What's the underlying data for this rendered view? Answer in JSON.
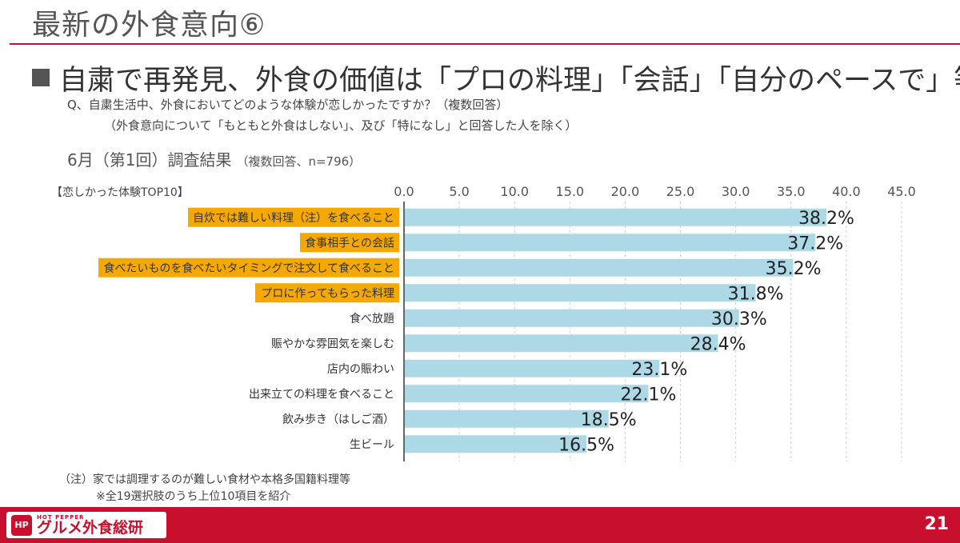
{
  "page": {
    "title": "最新の外食意向⑥",
    "headline": "自粛で再発見、外食の価値は「プロの料理」「会話」「自分のペースで」等",
    "question_line1": "Q、自粛生活中、外食においてどのような体験が恋しかったですか？（複数回答）",
    "question_line2": "（外食意向について「もともと外食はしない」、及び「特になし」と回答した人を除く）",
    "survey_title": "6月（第1回）調査結果",
    "survey_note": "（複数回答、n=796）",
    "chart_caption": "【恋しかった体験TOP10】",
    "note1": "（注）家では調理するのが難しい食材や本格多国籍料理等",
    "note2": "※全19選択肢のうち上位10項目を紹介",
    "page_number": "21"
  },
  "logo": {
    "mark": "HP",
    "small": "HOT PEPPER",
    "text": "グルメ外食総研"
  },
  "colors": {
    "bar": "#add8e6",
    "highlight": "#f5a800",
    "brand_red": "#c8102e",
    "axis_text": "#555555"
  },
  "chart_data": {
    "type": "bar",
    "orientation": "horizontal",
    "categories": [
      "自炊では難しい料理（注）を食べること",
      "食事相手との会話",
      "食べたいものを食べたいタイミングで注文して食べること",
      "プロに作ってもらった料理",
      "食べ放題",
      "賑やかな雰囲気を楽しむ",
      "店内の賑わい",
      "出来立ての料理を食べること",
      "飲み歩き（はしご酒）",
      "生ビール"
    ],
    "values": [
      38.2,
      37.2,
      35.2,
      31.8,
      30.3,
      28.4,
      23.1,
      22.1,
      18.5,
      16.5
    ],
    "value_labels": [
      "38.2%",
      "37.2%",
      "35.2%",
      "31.8%",
      "30.3%",
      "28.4%",
      "23.1%",
      "22.1%",
      "18.5%",
      "16.5%"
    ],
    "highlighted": [
      true,
      true,
      true,
      true,
      false,
      false,
      false,
      false,
      false,
      false
    ],
    "xlim": [
      0,
      45
    ],
    "ticks": [
      "0.0",
      "5.0",
      "10.0",
      "15.0",
      "20.0",
      "25.0",
      "30.0",
      "35.0",
      "40.0",
      "45.0"
    ],
    "tick_values": [
      0,
      5,
      10,
      15,
      20,
      25,
      30,
      35,
      40,
      45
    ],
    "grid": true,
    "axis_position": "top"
  }
}
